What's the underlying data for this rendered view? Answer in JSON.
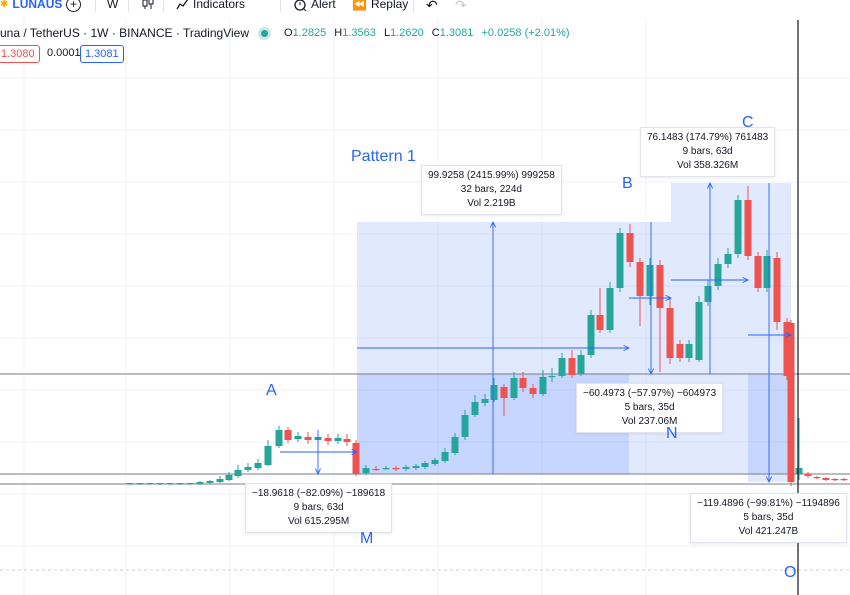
{
  "toolbar": {
    "symbol": "LUNAUS",
    "interval": "W",
    "indicators_label": "Indicators",
    "alert_label": "Alert",
    "replay_label": "Replay"
  },
  "legend": {
    "title": "una / TetherUS · 1W · BINANCE · TradingView",
    "ohlc": [
      {
        "label": "O",
        "value": "1.2825"
      },
      {
        "label": "H",
        "value": "1.3563"
      },
      {
        "label": "L",
        "value": "1.2620"
      },
      {
        "label": "C",
        "value": "1.3081"
      }
    ],
    "change": "+0.0258 (+2.01%)",
    "sell_price": "1.3080",
    "spread": "0.0001",
    "buy_price": "1.3081"
  },
  "measures": [
    {
      "line1": "99.9258 (2415.99%) 999258",
      "line2": "32 bars, 224d",
      "line3": "Vol 2.219B"
    },
    {
      "line1": "76.1483 (174.79%) 761483",
      "line2": "9 bars, 63d",
      "line3": "Vol 358.326M"
    },
    {
      "line1": "−60.4973 (−57.97%) −604973",
      "line2": "5 bars, 35d",
      "line3": "Vol 237.06M"
    },
    {
      "line1": "−18.9618 (−82.09%) −189618",
      "line2": "9 bars, 63d",
      "line3": "Vol 615.295M"
    },
    {
      "line1": "−119.4896 (−99.81%) −1194896",
      "line2": "5 bars, 35d",
      "line3": "Vol 421.247B"
    }
  ],
  "labels": {
    "pattern": "Pattern 1",
    "A": "A",
    "B": "B",
    "C": "C",
    "M": "M",
    "N": "N",
    "O": "O"
  },
  "colors": {
    "up": "#26a69a",
    "down": "#ef5350",
    "accent": "#2962ff",
    "measure_fill": "rgba(41,98,255,0.14)"
  }
}
